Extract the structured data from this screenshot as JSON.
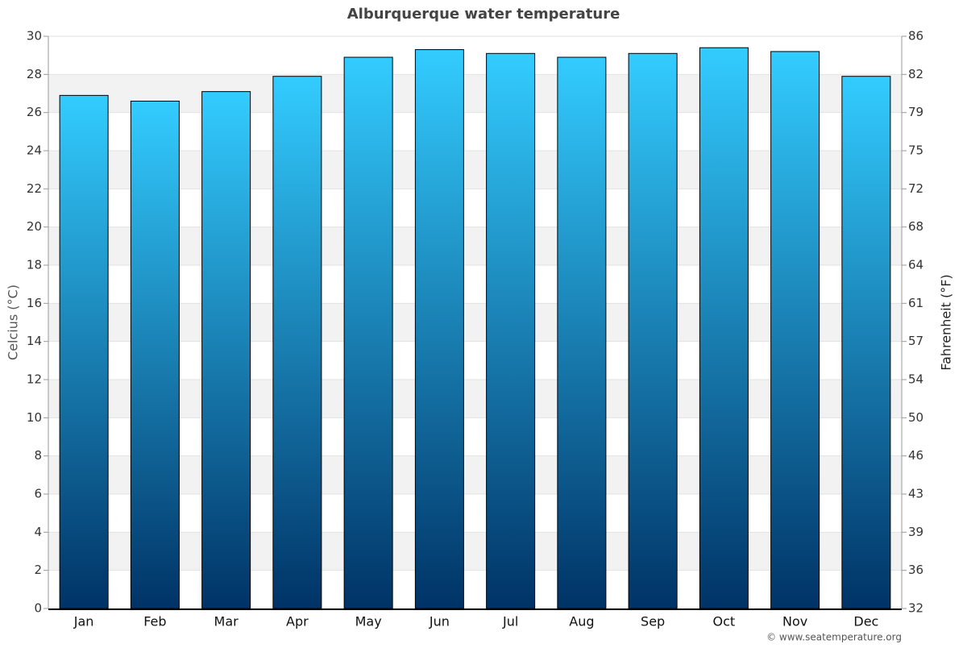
{
  "chart_data": {
    "type": "bar",
    "title": "Alburquerque water temperature",
    "categories": [
      "Jan",
      "Feb",
      "Mar",
      "Apr",
      "May",
      "Jun",
      "Jul",
      "Aug",
      "Sep",
      "Oct",
      "Nov",
      "Dec"
    ],
    "values": [
      26.9,
      26.6,
      27.1,
      27.9,
      28.9,
      29.3,
      29.1,
      28.9,
      29.1,
      29.4,
      29.2,
      27.9
    ],
    "gradient": [
      "#33ccff",
      "#003366"
    ],
    "ylabel": "Celcius (°C)",
    "y2label": "Fahrenheit (°F)",
    "ylim": [
      0,
      30
    ],
    "yticks": [
      0,
      2,
      4,
      6,
      8,
      10,
      12,
      14,
      16,
      18,
      20,
      22,
      24,
      26,
      28,
      30
    ],
    "y2lim": [
      32,
      86
    ],
    "y2ticks": [
      32,
      {
        "value": 35.6,
        "label": "36"
      },
      {
        "value": 39.2,
        "label": "39"
      },
      {
        "value": 42.8,
        "label": "43"
      },
      {
        "value": 46.4,
        "label": "46"
      },
      50,
      {
        "value": 53.6,
        "label": "54"
      },
      {
        "value": 57.2,
        "label": "57"
      },
      {
        "value": 60.8,
        "label": "61"
      },
      {
        "value": 64.4,
        "label": "64"
      },
      68,
      {
        "value": 71.6,
        "label": "72"
      },
      {
        "value": 75.2,
        "label": "75"
      },
      {
        "value": 78.8,
        "label": "79"
      },
      {
        "value": 82.4,
        "label": "82"
      },
      86
    ],
    "grid": true,
    "credit": "© www.seatemperature.org"
  }
}
